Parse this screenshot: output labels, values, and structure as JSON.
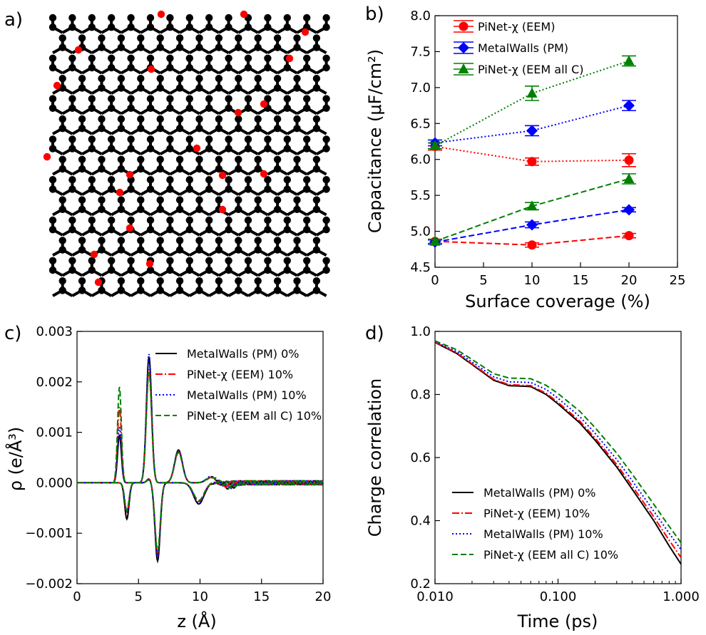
{
  "panel_letters": {
    "a": "a)",
    "b": "b)",
    "c": "c)",
    "d": "d)"
  },
  "colors": {
    "black": "#000000",
    "red": "#ff0000",
    "blue": "#0000ff",
    "green": "#008000"
  },
  "chart_data": [
    {
      "panel": "a",
      "type": "structure",
      "description_icon": "graphene-sheet-with-oxygen-atoms",
      "atom_colors": {
        "carbon": "#000000",
        "oxygen": "#ff0000"
      }
    },
    {
      "panel": "b",
      "type": "line",
      "title": "",
      "xlabel": "Surface coverage (%)",
      "ylabel": "Capacitance (μF/cm²)",
      "xlim": [
        0,
        25
      ],
      "ylim": [
        4.5,
        8.0
      ],
      "xticks": [
        0,
        5,
        10,
        15,
        20,
        25
      ],
      "yticks": [
        4.5,
        5.0,
        5.5,
        6.0,
        6.5,
        7.0,
        7.5,
        8.0
      ],
      "xtick_labels": [
        "0",
        "5",
        "10",
        "15",
        "20",
        "25"
      ],
      "ytick_labels": [
        "4.5",
        "5.0",
        "5.5",
        "6.0",
        "6.5",
        "7.0",
        "7.5",
        "8.0"
      ],
      "legend": [
        "PiNet-χ (EEM)",
        "MetalWalls (PM)",
        "PiNet-χ (EEM all C)"
      ],
      "series": [
        {
          "name": "PiNet-χ (EEM) dotted",
          "color": "#ff0000",
          "style": "dotted",
          "marker": "circle",
          "x": [
            0,
            10,
            20
          ],
          "y": [
            6.18,
            5.97,
            5.99
          ],
          "err": [
            0.05,
            0.05,
            0.09
          ]
        },
        {
          "name": "MetalWalls (PM) dotted",
          "color": "#0000ff",
          "style": "dotted",
          "marker": "diamond",
          "x": [
            0,
            10,
            20
          ],
          "y": [
            6.23,
            6.4,
            6.75
          ],
          "err": [
            0.04,
            0.07,
            0.07
          ]
        },
        {
          "name": "PiNet-χ (EEM all C) dotted",
          "color": "#008000",
          "style": "dotted",
          "marker": "triangle",
          "x": [
            0,
            10,
            20
          ],
          "y": [
            6.19,
            6.92,
            7.37
          ],
          "err": [
            0.04,
            0.1,
            0.07
          ]
        },
        {
          "name": "PiNet-χ (EEM) dashed",
          "color": "#ff0000",
          "style": "dashed",
          "marker": "circle",
          "x": [
            0,
            10,
            20
          ],
          "y": [
            4.86,
            4.81,
            4.94
          ],
          "err": [
            0.03,
            0.03,
            0.03
          ]
        },
        {
          "name": "MetalWalls (PM) dashed",
          "color": "#0000ff",
          "style": "dashed",
          "marker": "diamond",
          "x": [
            0,
            10,
            20
          ],
          "y": [
            4.85,
            5.09,
            5.3
          ],
          "err": [
            0.03,
            0.04,
            0.03
          ]
        },
        {
          "name": "PiNet-χ (EEM all C) dashed",
          "color": "#008000",
          "style": "dashed",
          "marker": "triangle",
          "x": [
            0,
            10,
            20
          ],
          "y": [
            4.86,
            5.35,
            5.73
          ],
          "err": [
            0.03,
            0.05,
            0.07
          ]
        }
      ]
    },
    {
      "panel": "c",
      "type": "line",
      "xlabel": "z (Å)",
      "ylabel": "ρ (e/Å³)",
      "xlim": [
        0,
        20
      ],
      "ylim": [
        -0.002,
        0.003
      ],
      "xticks": [
        0,
        5,
        10,
        15,
        20
      ],
      "yticks": [
        -0.002,
        -0.001,
        0.0,
        0.001,
        0.002,
        0.003
      ],
      "xtick_labels": [
        "0",
        "5",
        "10",
        "15",
        "20"
      ],
      "ytick_labels": [
        "−0.002",
        "−0.001",
        "0.000",
        "0.001",
        "0.002",
        "0.003"
      ],
      "legend": [
        "MetalWalls (PM) 0%",
        "PiNet-χ (EEM) 10%",
        "MetalWalls (PM) 10%",
        "PiNet-χ (EEM all C) 10%"
      ],
      "series": [
        {
          "name": "MetalWalls (PM) 0%",
          "color": "#000000",
          "style": "solid",
          "cation_peaks": [
            [
              3.45,
              0.00095,
              0.22
            ],
            [
              5.85,
              0.0025,
              0.3
            ],
            [
              8.25,
              0.00065,
              0.45
            ],
            [
              10.9,
              0.00011,
              0.55
            ]
          ],
          "anion_peaks": [
            [
              4.05,
              -0.00072,
              0.25
            ],
            [
              5.85,
              8e-05,
              0.25
            ],
            [
              6.55,
              -0.00155,
              0.3
            ],
            [
              9.9,
              -0.00042,
              0.6
            ],
            [
              12.4,
              -0.0001,
              0.6
            ]
          ]
        },
        {
          "name": "PiNet-χ (EEM) 10%",
          "color": "#ff0000",
          "style": "dashdot",
          "cation_peaks": [
            [
              3.45,
              0.0015,
              0.22
            ],
            [
              5.85,
              0.00225,
              0.3
            ],
            [
              8.25,
              0.00062,
              0.45
            ],
            [
              10.9,
              0.0001,
              0.55
            ]
          ],
          "anion_peaks": [
            [
              4.05,
              -0.00058,
              0.25
            ],
            [
              5.85,
              7e-05,
              0.25
            ],
            [
              6.55,
              -0.0014,
              0.3
            ],
            [
              9.9,
              -0.00037,
              0.6
            ],
            [
              12.4,
              -8e-05,
              0.6
            ]
          ]
        },
        {
          "name": "MetalWalls (PM) 10%",
          "color": "#0000ff",
          "style": "dotted",
          "cation_peaks": [
            [
              3.45,
              0.0011,
              0.22
            ],
            [
              5.85,
              0.00255,
              0.3
            ],
            [
              8.25,
              0.00064,
              0.45
            ],
            [
              10.9,
              0.00012,
              0.55
            ]
          ],
          "anion_peaks": [
            [
              4.05,
              -0.0006,
              0.25
            ],
            [
              5.85,
              6e-05,
              0.25
            ],
            [
              6.55,
              -0.00148,
              0.3
            ],
            [
              9.9,
              -0.0004,
              0.6
            ],
            [
              12.4,
              -9e-05,
              0.6
            ]
          ]
        },
        {
          "name": "PiNet-χ (EEM all C) 10%",
          "color": "#008000",
          "style": "dashed",
          "cation_peaks": [
            [
              3.45,
              0.0019,
              0.22
            ],
            [
              5.85,
              0.0022,
              0.3
            ],
            [
              8.25,
              0.0006,
              0.45
            ],
            [
              10.9,
              0.0001,
              0.55
            ]
          ],
          "anion_peaks": [
            [
              4.05,
              -0.00055,
              0.25
            ],
            [
              5.85,
              6e-05,
              0.25
            ],
            [
              6.55,
              -0.00135,
              0.3
            ],
            [
              9.9,
              -0.00035,
              0.6
            ],
            [
              12.4,
              -8e-05,
              0.6
            ]
          ]
        }
      ]
    },
    {
      "panel": "d",
      "type": "line",
      "xscale": "log",
      "xlabel": "Time (ps)",
      "ylabel": "Charge correlation",
      "xlim": [
        0.01,
        1.0
      ],
      "ylim": [
        0.2,
        1.0
      ],
      "xticks": [
        0.01,
        0.1,
        1.0
      ],
      "yticks": [
        0.2,
        0.4,
        0.6,
        0.8,
        1.0
      ],
      "xtick_labels": [
        "0.010",
        "0.100",
        "1.000"
      ],
      "ytick_labels": [
        "0.2",
        "0.4",
        "0.6",
        "0.8",
        "1.0"
      ],
      "legend": [
        "MetalWalls (PM) 0%",
        "PiNet-χ (EEM) 10%",
        "MetalWalls (PM) 10%",
        "PiNet-χ (EEM all C) 10%"
      ],
      "series": [
        {
          "name": "MetalWalls (PM) 0%",
          "color": "#000000",
          "style": "solid",
          "x": [
            0.01,
            0.015,
            0.02,
            0.03,
            0.04,
            0.06,
            0.08,
            0.1,
            0.15,
            0.2,
            0.3,
            0.4,
            0.6,
            0.8,
            1.0
          ],
          "y": [
            0.965,
            0.93,
            0.895,
            0.845,
            0.828,
            0.825,
            0.8,
            0.77,
            0.71,
            0.655,
            0.57,
            0.5,
            0.4,
            0.32,
            0.262
          ]
        },
        {
          "name": "PiNet-χ (EEM) 10%",
          "color": "#ff0000",
          "style": "dashdot",
          "x": [
            0.01,
            0.015,
            0.02,
            0.03,
            0.04,
            0.06,
            0.08,
            0.1,
            0.15,
            0.2,
            0.3,
            0.4,
            0.6,
            0.8,
            1.0
          ],
          "y": [
            0.966,
            0.932,
            0.897,
            0.848,
            0.831,
            0.828,
            0.804,
            0.775,
            0.716,
            0.662,
            0.578,
            0.51,
            0.412,
            0.338,
            0.283
          ]
        },
        {
          "name": "MetalWalls (PM) 10%",
          "color": "#0000ff",
          "style": "dotted",
          "x": [
            0.01,
            0.015,
            0.02,
            0.03,
            0.04,
            0.06,
            0.08,
            0.1,
            0.15,
            0.2,
            0.3,
            0.4,
            0.6,
            0.8,
            1.0
          ],
          "y": [
            0.967,
            0.936,
            0.903,
            0.856,
            0.84,
            0.838,
            0.816,
            0.788,
            0.73,
            0.677,
            0.594,
            0.527,
            0.43,
            0.36,
            0.308
          ]
        },
        {
          "name": "PiNet-χ (EEM all C) 10%",
          "color": "#008000",
          "style": "dashed",
          "x": [
            0.01,
            0.015,
            0.02,
            0.03,
            0.04,
            0.06,
            0.08,
            0.1,
            0.15,
            0.2,
            0.3,
            0.4,
            0.6,
            0.8,
            1.0
          ],
          "y": [
            0.97,
            0.942,
            0.911,
            0.866,
            0.852,
            0.85,
            0.829,
            0.803,
            0.747,
            0.695,
            0.614,
            0.548,
            0.452,
            0.382,
            0.33
          ]
        }
      ]
    }
  ]
}
